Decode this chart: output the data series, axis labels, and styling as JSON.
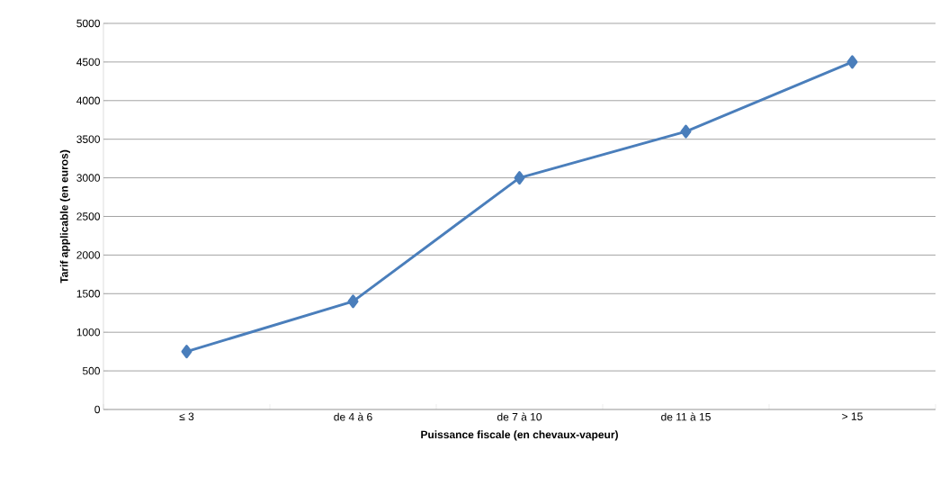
{
  "chart_data": {
    "type": "line",
    "xlabel": "Puissance fiscale (en chevaux-vapeur)",
    "ylabel": "Tarif applicable (en euros)",
    "categories": [
      "≤ 3",
      "de 4 à 6",
      "de 7 à 10",
      "de 11 à 15",
      "> 15"
    ],
    "values": [
      750,
      1400,
      3000,
      3600,
      4500
    ],
    "color": "#4a7ebb",
    "marker": "diamond",
    "line_style": "solid",
    "ylim": [
      0,
      5000
    ],
    "yticks": [
      0,
      500,
      1000,
      1500,
      2000,
      2500,
      3000,
      3500,
      4000,
      4500,
      5000
    ],
    "grid": "y"
  }
}
